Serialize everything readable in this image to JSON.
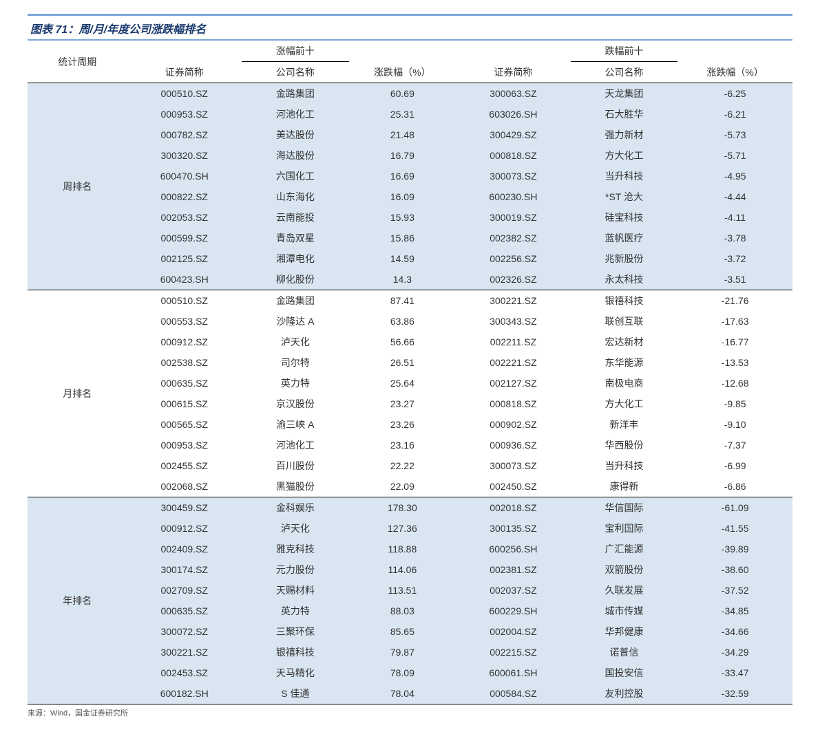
{
  "title": "图表 71：周/月/年度公司涨跌幅排名",
  "source": "来源：Wind，国金证券研究所",
  "headers": {
    "period": "统计周期",
    "top_gain": "涨幅前十",
    "top_loss": "跌幅前十",
    "code": "证券简称",
    "name": "公司名称",
    "chg": "涨跌幅（%）"
  },
  "colors": {
    "stripe_a": "#d9e6f2",
    "stripe_b": "#ffffff",
    "title_color": "#1a3a6e",
    "rule_color": "#7aa6d6",
    "line_color": "#000000"
  },
  "periods": [
    {
      "label": "周排名",
      "stripe": "a",
      "rows": [
        {
          "gc": "000510.SZ",
          "gn": "金路集团",
          "gv": "60.69",
          "lc": "300063.SZ",
          "ln": "天龙集团",
          "lv": "-6.25"
        },
        {
          "gc": "000953.SZ",
          "gn": "河池化工",
          "gv": "25.31",
          "lc": "603026.SH",
          "ln": "石大胜华",
          "lv": "-6.21"
        },
        {
          "gc": "000782.SZ",
          "gn": "美达股份",
          "gv": "21.48",
          "lc": "300429.SZ",
          "ln": "强力新材",
          "lv": "-5.73"
        },
        {
          "gc": "300320.SZ",
          "gn": "海达股份",
          "gv": "16.79",
          "lc": "000818.SZ",
          "ln": "方大化工",
          "lv": "-5.71"
        },
        {
          "gc": "600470.SH",
          "gn": "六国化工",
          "gv": "16.69",
          "lc": "300073.SZ",
          "ln": "当升科技",
          "lv": "-4.95"
        },
        {
          "gc": "000822.SZ",
          "gn": "山东海化",
          "gv": "16.09",
          "lc": "600230.SH",
          "ln": "*ST 沧大",
          "lv": "-4.44"
        },
        {
          "gc": "002053.SZ",
          "gn": "云南能投",
          "gv": "15.93",
          "lc": "300019.SZ",
          "ln": "硅宝科技",
          "lv": "-4.11"
        },
        {
          "gc": "000599.SZ",
          "gn": "青岛双星",
          "gv": "15.86",
          "lc": "002382.SZ",
          "ln": "蓝帆医疗",
          "lv": "-3.78"
        },
        {
          "gc": "002125.SZ",
          "gn": "湘潭电化",
          "gv": "14.59",
          "lc": "002256.SZ",
          "ln": "兆新股份",
          "lv": "-3.72"
        },
        {
          "gc": "600423.SH",
          "gn": "柳化股份",
          "gv": "14.3",
          "lc": "002326.SZ",
          "ln": "永太科技",
          "lv": "-3.51"
        }
      ]
    },
    {
      "label": "月排名",
      "stripe": "b",
      "rows": [
        {
          "gc": "000510.SZ",
          "gn": "金路集团",
          "gv": "87.41",
          "lc": "300221.SZ",
          "ln": "银禧科技",
          "lv": "-21.76"
        },
        {
          "gc": "000553.SZ",
          "gn": "沙隆达 A",
          "gv": "63.86",
          "lc": "300343.SZ",
          "ln": "联创互联",
          "lv": "-17.63"
        },
        {
          "gc": "000912.SZ",
          "gn": "泸天化",
          "gv": "56.66",
          "lc": "002211.SZ",
          "ln": "宏达新材",
          "lv": "-16.77"
        },
        {
          "gc": "002538.SZ",
          "gn": "司尔特",
          "gv": "26.51",
          "lc": "002221.SZ",
          "ln": "东华能源",
          "lv": "-13.53"
        },
        {
          "gc": "000635.SZ",
          "gn": "英力特",
          "gv": "25.64",
          "lc": "002127.SZ",
          "ln": "南极电商",
          "lv": "-12.68"
        },
        {
          "gc": "000615.SZ",
          "gn": "京汉股份",
          "gv": "23.27",
          "lc": "000818.SZ",
          "ln": "方大化工",
          "lv": "-9.85"
        },
        {
          "gc": "000565.SZ",
          "gn": "渝三峡 A",
          "gv": "23.26",
          "lc": "000902.SZ",
          "ln": "新洋丰",
          "lv": "-9.10"
        },
        {
          "gc": "000953.SZ",
          "gn": "河池化工",
          "gv": "23.16",
          "lc": "000936.SZ",
          "ln": "华西股份",
          "lv": "-7.37"
        },
        {
          "gc": "002455.SZ",
          "gn": "百川股份",
          "gv": "22.22",
          "lc": "300073.SZ",
          "ln": "当升科技",
          "lv": "-6.99"
        },
        {
          "gc": "002068.SZ",
          "gn": "黑猫股份",
          "gv": "22.09",
          "lc": "002450.SZ",
          "ln": "康得新",
          "lv": "-6.86"
        }
      ]
    },
    {
      "label": "年排名",
      "stripe": "a",
      "rows": [
        {
          "gc": "300459.SZ",
          "gn": "金科娱乐",
          "gv": "178.30",
          "lc": "002018.SZ",
          "ln": "华信国际",
          "lv": "-61.09"
        },
        {
          "gc": "000912.SZ",
          "gn": "泸天化",
          "gv": "127.36",
          "lc": "300135.SZ",
          "ln": "宝利国际",
          "lv": "-41.55"
        },
        {
          "gc": "002409.SZ",
          "gn": "雅克科技",
          "gv": "118.88",
          "lc": "600256.SH",
          "ln": "广汇能源",
          "lv": "-39.89"
        },
        {
          "gc": "300174.SZ",
          "gn": "元力股份",
          "gv": "114.06",
          "lc": "002381.SZ",
          "ln": "双箭股份",
          "lv": "-38.60"
        },
        {
          "gc": "002709.SZ",
          "gn": "天赐材料",
          "gv": "113.51",
          "lc": "002037.SZ",
          "ln": "久联发展",
          "lv": "-37.52"
        },
        {
          "gc": "000635.SZ",
          "gn": "英力特",
          "gv": "88.03",
          "lc": "600229.SH",
          "ln": "城市传媒",
          "lv": "-34.85"
        },
        {
          "gc": "300072.SZ",
          "gn": "三聚环保",
          "gv": "85.65",
          "lc": "002004.SZ",
          "ln": "华邦健康",
          "lv": "-34.66"
        },
        {
          "gc": "300221.SZ",
          "gn": "银禧科技",
          "gv": "79.87",
          "lc": "002215.SZ",
          "ln": "诺普信",
          "lv": "-34.29"
        },
        {
          "gc": "002453.SZ",
          "gn": "天马精化",
          "gv": "78.09",
          "lc": "600061.SH",
          "ln": "国投安信",
          "lv": "-33.47"
        },
        {
          "gc": "600182.SH",
          "gn": "S 佳通",
          "gv": "78.04",
          "lc": "000584.SZ",
          "ln": "友利控股",
          "lv": "-32.59"
        }
      ]
    }
  ]
}
